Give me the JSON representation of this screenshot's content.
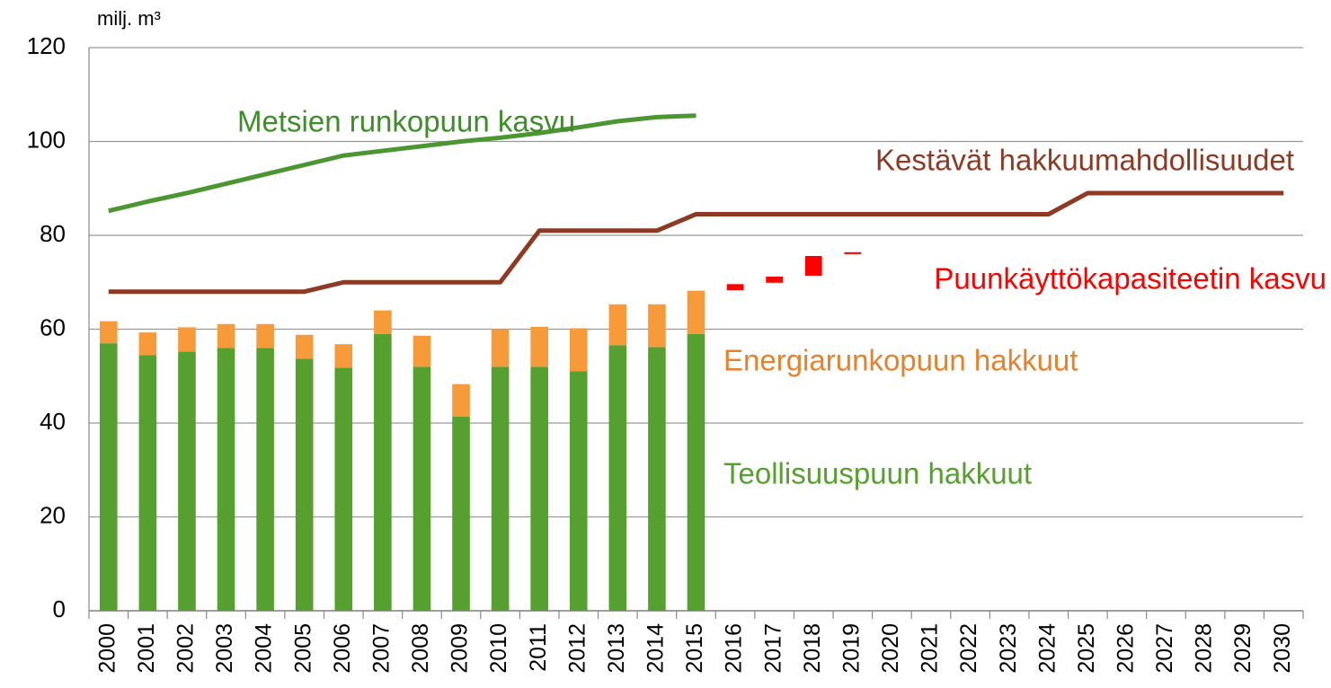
{
  "chart_data": {
    "type": "bar",
    "stacked": true,
    "y_label": "milj. m³",
    "categories": [
      "2000",
      "2001",
      "2002",
      "2003",
      "2004",
      "2005",
      "2006",
      "2007",
      "2008",
      "2009",
      "2010",
      "2011",
      "2012",
      "2013",
      "2014",
      "2015",
      "2016",
      "2017",
      "2018",
      "2019",
      "2020",
      "2021",
      "2022",
      "2023",
      "2024",
      "2025",
      "2026",
      "2027",
      "2028",
      "2029",
      "2030"
    ],
    "ylim": [
      0,
      120
    ],
    "yticks": [
      0,
      20,
      40,
      60,
      80,
      100,
      120
    ],
    "grid": true,
    "series": [
      {
        "name": "Teollisuuspuun hakkuut",
        "type": "bar",
        "color": "#55a02e",
        "values": [
          57,
          54.5,
          55.2,
          56,
          56,
          53.7,
          51.8,
          59,
          52,
          41.4,
          52,
          52,
          51,
          56.6,
          56.2,
          59,
          null,
          null,
          null,
          null,
          null,
          null,
          null,
          null,
          null,
          null,
          null,
          null,
          null,
          null,
          null
        ]
      },
      {
        "name": "Energiarunkopuun hakkuut",
        "type": "bar",
        "color": "#f79a3a",
        "values": [
          4.7,
          4.8,
          5.2,
          5.1,
          5.1,
          5.1,
          5.0,
          5.0,
          6.6,
          6.9,
          8.0,
          8.5,
          9.2,
          8.7,
          9.1,
          9.2,
          null,
          null,
          null,
          null,
          null,
          null,
          null,
          null,
          null,
          null,
          null,
          null,
          null,
          null,
          null
        ]
      },
      {
        "name": "Metsien runkopuun kasvu",
        "type": "line",
        "color": "#4a9630",
        "values": [
          85.2,
          87.2,
          89,
          91,
          93,
          95,
          97,
          98,
          99,
          100,
          100.8,
          101.8,
          103,
          104.3,
          105.2,
          105.5,
          null,
          null,
          null,
          null,
          null,
          null,
          null,
          null,
          null,
          null,
          null,
          null,
          null,
          null,
          null
        ]
      },
      {
        "name": "Kestävät hakkuumahdollisuudet",
        "type": "line",
        "color": "#8e3a23",
        "values": [
          68,
          68,
          68,
          68,
          68,
          68,
          70,
          70,
          70,
          70,
          70,
          81,
          81,
          81,
          81,
          84.5,
          84.5,
          84.5,
          84.5,
          84.5,
          84.5,
          84.5,
          84.5,
          84.5,
          84.5,
          89,
          89,
          89,
          89,
          89,
          89
        ]
      },
      {
        "name": "Puunkäyttökapasiteetin kasvu",
        "type": "range",
        "color": "#ff0000",
        "low": [
          null,
          null,
          null,
          null,
          null,
          null,
          null,
          null,
          null,
          null,
          null,
          null,
          null,
          null,
          null,
          null,
          68.3,
          69.9,
          71.4,
          76.0,
          null,
          null,
          null,
          null,
          null,
          null,
          null,
          null,
          null,
          null,
          null
        ],
        "high": [
          null,
          null,
          null,
          null,
          null,
          null,
          null,
          null,
          null,
          null,
          null,
          null,
          null,
          null,
          null,
          null,
          69.6,
          71.2,
          75.6,
          76.4,
          null,
          null,
          null,
          null,
          null,
          null,
          null,
          null,
          null,
          null,
          null
        ]
      }
    ]
  }
}
